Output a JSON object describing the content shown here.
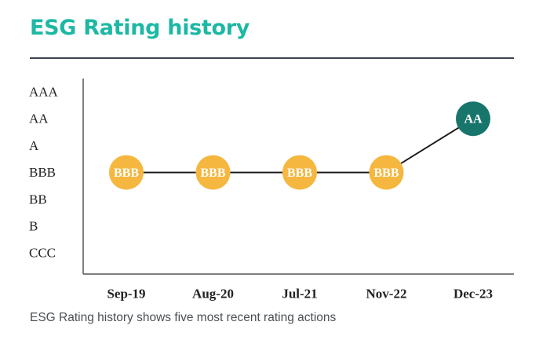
{
  "header": {
    "title": "ESG Rating history"
  },
  "footer": {
    "caption": "ESG Rating history shows five most recent rating actions"
  },
  "colors": {
    "title": "#1db8a4",
    "past_rating": "#f5b73f",
    "current_rating": "#17756c",
    "line": "#1a1a1a",
    "axis": "#555555",
    "rule": "#3b4350"
  },
  "chart_data": {
    "type": "line",
    "title": "ESG Rating history",
    "categories": [
      "Sep-19",
      "Aug-20",
      "Jul-21",
      "Nov-22",
      "Dec-23"
    ],
    "y_categories": [
      "AAA",
      "AA",
      "A",
      "BBB",
      "BB",
      "B",
      "CCC"
    ],
    "series": [
      {
        "values": [
          "BBB",
          "BBB",
          "BBB",
          "BBB",
          "AA"
        ]
      }
    ],
    "grid": false,
    "legend": "none"
  }
}
